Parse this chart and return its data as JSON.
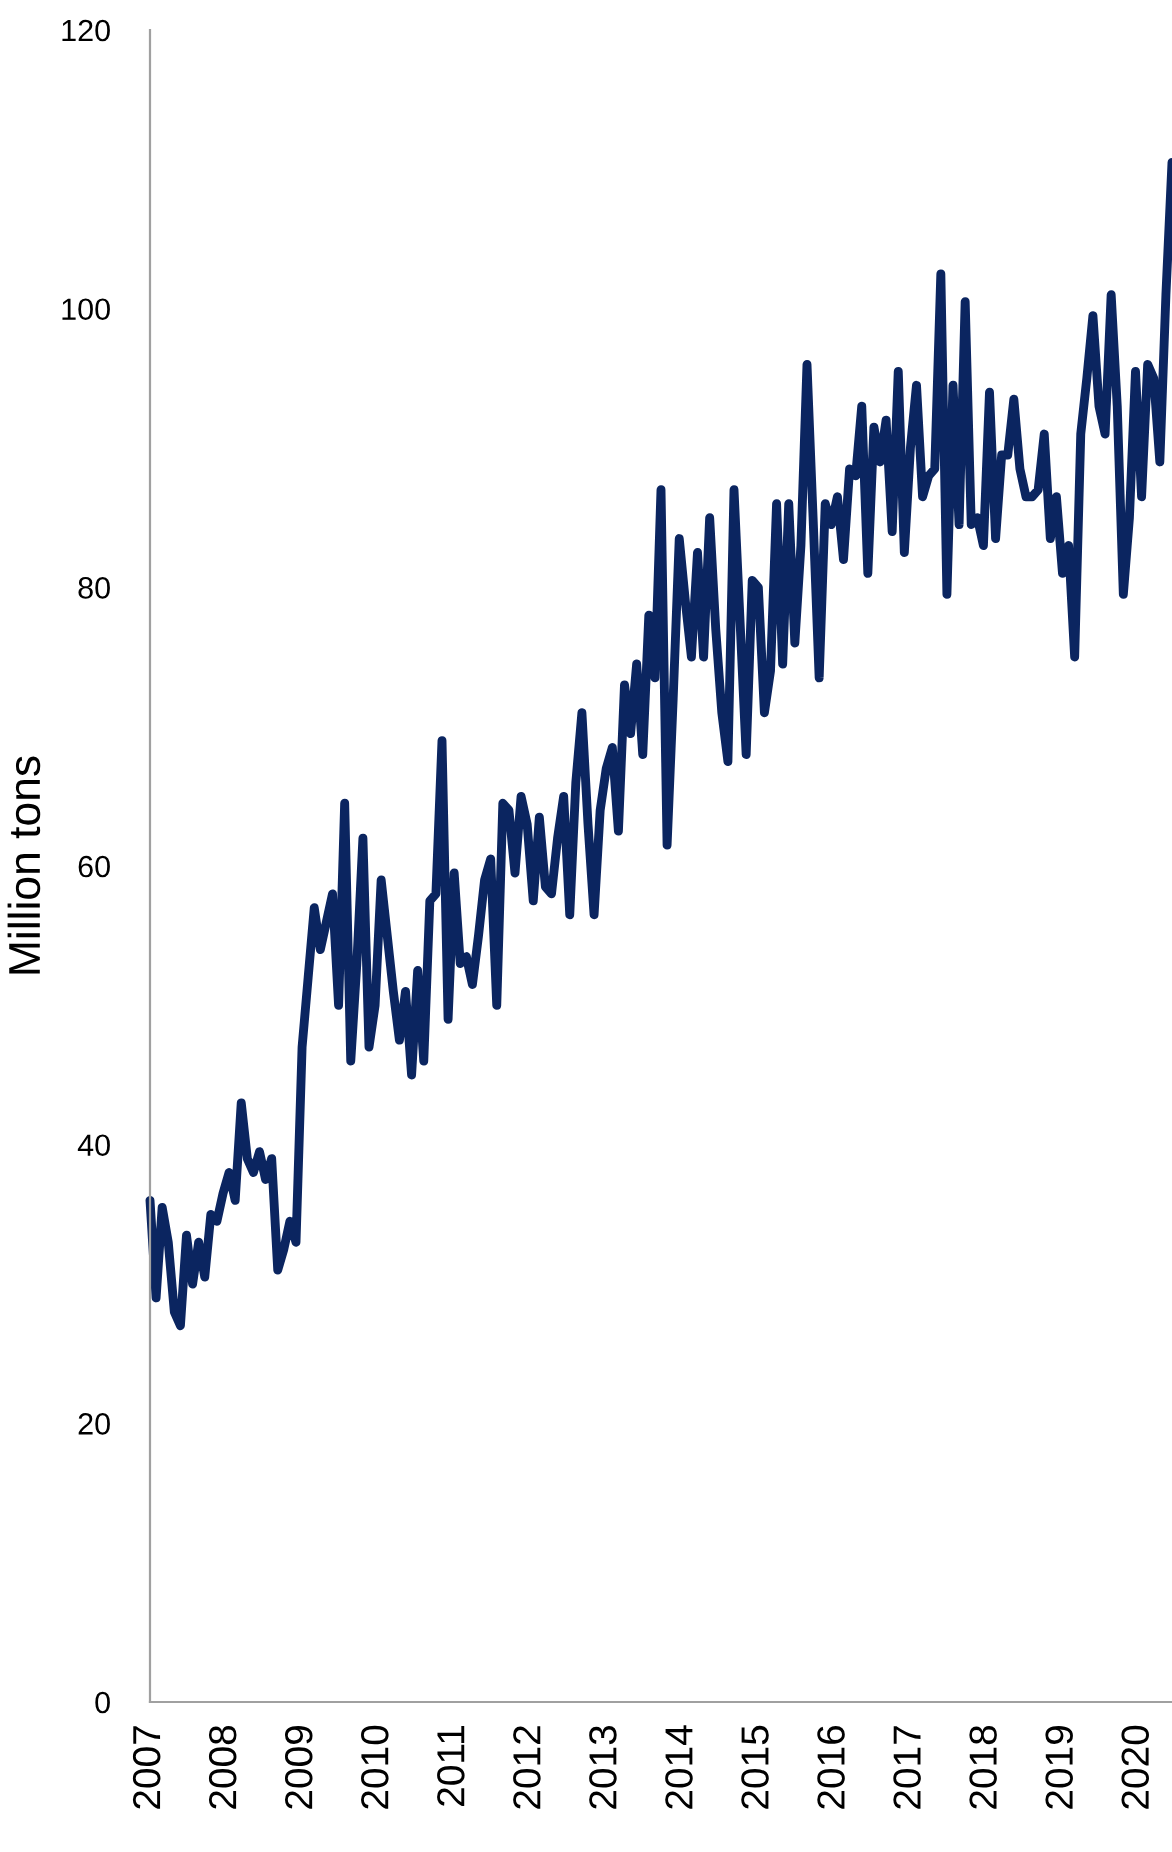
{
  "chart_data": {
    "type": "line",
    "ylabel": "Million tons",
    "xlim": [
      2007,
      2020.44
    ],
    "xticks": [
      2007,
      2008,
      2009,
      2010,
      2011,
      2012,
      2013,
      2014,
      2015,
      2016,
      2017,
      2018,
      2019,
      2020
    ],
    "ylim": [
      0,
      120
    ],
    "yticks": [
      0,
      20,
      40,
      60,
      80,
      100,
      120
    ],
    "grid": false,
    "legend": false,
    "marker": "none",
    "line_style": "solid",
    "series": [
      {
        "color": "#0b2560",
        "x": [
          2007.0,
          2007.08,
          2007.16,
          2007.24,
          2007.32,
          2007.4,
          2007.48,
          2007.56,
          2007.64,
          2007.72,
          2007.8,
          2007.88,
          2007.96,
          2008.04,
          2008.12,
          2008.2,
          2008.28,
          2008.36,
          2008.44,
          2008.52,
          2008.6,
          2008.68,
          2008.76,
          2008.84,
          2008.92,
          2009.0,
          2009.08,
          2009.16,
          2009.24,
          2009.32,
          2009.4,
          2009.48,
          2009.56,
          2009.64,
          2009.72,
          2009.8,
          2009.88,
          2009.96,
          2010.04,
          2010.12,
          2010.2,
          2010.28,
          2010.36,
          2010.44,
          2010.52,
          2010.6,
          2010.68,
          2010.76,
          2010.84,
          2010.92,
          2011.0,
          2011.08,
          2011.16,
          2011.24,
          2011.32,
          2011.4,
          2011.48,
          2011.56,
          2011.64,
          2011.72,
          2011.8,
          2011.88,
          2011.96,
          2012.04,
          2012.12,
          2012.2,
          2012.28,
          2012.36,
          2012.44,
          2012.52,
          2012.6,
          2012.68,
          2012.76,
          2012.84,
          2012.92,
          2013.0,
          2013.08,
          2013.16,
          2013.24,
          2013.32,
          2013.4,
          2013.48,
          2013.56,
          2013.64,
          2013.72,
          2013.8,
          2013.88,
          2013.96,
          2014.04,
          2014.12,
          2014.2,
          2014.28,
          2014.36,
          2014.44,
          2014.52,
          2014.6,
          2014.68,
          2014.76,
          2014.84,
          2014.92,
          2015.0,
          2015.08,
          2015.16,
          2015.24,
          2015.32,
          2015.4,
          2015.48,
          2015.56,
          2015.64,
          2015.72,
          2015.8,
          2015.88,
          2015.96,
          2016.04,
          2016.12,
          2016.2,
          2016.28,
          2016.36,
          2016.44,
          2016.52,
          2016.6,
          2016.68,
          2016.76,
          2016.84,
          2016.92,
          2017.0,
          2017.08,
          2017.16,
          2017.24,
          2017.32,
          2017.4,
          2017.48,
          2017.56,
          2017.64,
          2017.72,
          2017.8,
          2017.88,
          2017.96,
          2018.04,
          2018.12,
          2018.2,
          2018.28,
          2018.36,
          2018.44,
          2018.52,
          2018.6,
          2018.68,
          2018.76,
          2018.84,
          2018.92,
          2019.0,
          2019.08,
          2019.16,
          2019.24,
          2019.32,
          2019.4,
          2019.48,
          2019.56,
          2019.64,
          2019.72,
          2019.8,
          2019.88,
          2019.96,
          2020.04,
          2020.12,
          2020.2,
          2020.28,
          2020.36,
          2020.44
        ],
        "values": [
          36,
          29,
          35.5,
          33,
          28,
          27,
          33.5,
          30,
          33,
          30.5,
          35,
          34.5,
          36.5,
          38,
          36,
          43,
          39,
          38,
          39.5,
          37.5,
          39,
          31,
          32.5,
          34.5,
          33,
          47,
          52,
          57,
          54,
          56,
          58,
          50,
          64.5,
          46,
          53,
          62,
          47,
          50,
          59,
          55,
          51,
          47.5,
          51,
          45,
          52.5,
          46,
          57.5,
          58,
          69,
          49,
          59.5,
          53,
          53.5,
          51.5,
          55,
          59,
          60.5,
          50,
          64.5,
          64,
          59.5,
          65,
          63,
          57.5,
          63.5,
          58.5,
          58,
          62,
          65,
          56.5,
          66,
          71,
          63,
          56.5,
          64,
          67,
          68.5,
          62.5,
          73,
          69.5,
          74.5,
          68,
          78,
          73.5,
          87,
          61.5,
          72,
          83.5,
          79,
          75,
          82.5,
          75,
          85,
          77,
          71,
          67.5,
          87,
          77.5,
          68,
          80.5,
          80,
          71,
          74,
          86,
          74.5,
          86,
          76,
          83,
          96,
          85,
          73.5,
          86,
          84.5,
          86.5,
          82,
          88.5,
          88,
          93,
          81,
          91.5,
          89,
          92,
          84,
          95.5,
          82.5,
          90,
          94.5,
          86.5,
          88,
          88.5,
          102.5,
          79.5,
          94.5,
          84.5,
          100.5,
          84.5,
          85,
          83,
          94,
          83.5,
          89.5,
          89.5,
          93.5,
          88.5,
          86.5,
          86.5,
          87,
          91,
          83.5,
          86.5,
          81,
          83,
          75,
          91,
          95,
          99.5,
          93,
          91,
          101,
          93,
          79.5,
          85,
          95.5,
          86.5,
          96,
          95,
          89,
          101,
          110.5
        ]
      }
    ]
  }
}
